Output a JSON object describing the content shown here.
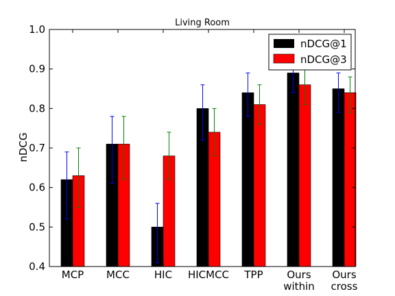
{
  "chart_data": {
    "type": "bar",
    "title": "Living Room",
    "xlabel": "",
    "ylabel": "nDCG",
    "ylim": [
      0.4,
      1.0
    ],
    "yticks": [
      "0.4",
      "0.5",
      "0.6",
      "0.7",
      "0.8",
      "0.9",
      "1.0"
    ],
    "grid": false,
    "legend_position": "top-right",
    "categories": [
      [
        "MCP"
      ],
      [
        "MCC"
      ],
      [
        "HIC"
      ],
      [
        "HICMCC"
      ],
      [
        "TPP"
      ],
      [
        "Ours",
        "within"
      ],
      [
        "Ours",
        "cross"
      ]
    ],
    "series": [
      {
        "name": "nDCG@1",
        "color": "#000000",
        "error_color": "#0000ff",
        "values": [
          0.62,
          0.71,
          0.5,
          0.8,
          0.84,
          0.89,
          0.85
        ],
        "error_low": [
          0.52,
          0.61,
          0.41,
          0.72,
          0.78,
          0.84,
          0.79
        ],
        "error_high": [
          0.69,
          0.78,
          0.56,
          0.86,
          0.89,
          0.93,
          0.89
        ]
      },
      {
        "name": "nDCG@3",
        "color": "#ff0000",
        "error_color": "#008000",
        "values": [
          0.63,
          0.71,
          0.68,
          0.74,
          0.81,
          0.86,
          0.84
        ],
        "error_low": [
          0.55,
          0.62,
          0.62,
          0.68,
          0.76,
          0.81,
          0.79
        ],
        "error_high": [
          0.7,
          0.78,
          0.74,
          0.8,
          0.86,
          0.9,
          0.88
        ]
      }
    ]
  }
}
